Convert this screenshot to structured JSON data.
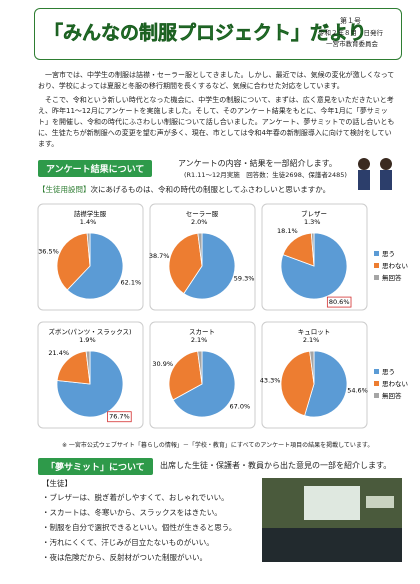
{
  "header": {
    "title": "「みんなの制服プロジェクト」だより",
    "issue": "第１号",
    "date": "令和２年８月　日発行",
    "publisher": "一宮市教育委員会"
  },
  "intro": [
    "一宮市では、中学生の制服は詰襟・セーラー服としてきました。しかし、最近では、気候の変化が激しくなっており、学校によっては夏服と冬服の移行期間を長くするなど、気候に合わせた対応をしています。",
    "そこで、令和という新しい時代となった機会に、中学生の制服について、まずは、広く意見をいただきたいと考え、昨年11～12月にアンケートを実施しました。そして、そのアンケート結果をもとに、今年1月に「夢サミット」を開催し、令和の時代にふさわしい制服について話し合いました。アンケート、夢サミットでの話し合いともに、生徒たちが新制服への変更を望む声が多く、現在、市としては令和4年春の新制服導入に向けて検討をしています。"
  ],
  "survey": {
    "heading": "アンケート結果について",
    "lead": "アンケートの内容・結果を一部紹介します。",
    "note": "(R1.11～12月実施　回答数：生徒2698、保護者2485)",
    "question_tag": "【生徒用設問】",
    "question": "次にあげるものは、令和の時代の制服としてふさわしいと思いますか。",
    "legend": {
      "labels": [
        "思う",
        "思わない",
        "無回答"
      ],
      "colors": [
        "#5b9bd5",
        "#ed7d31",
        "#a5a5a5"
      ]
    },
    "charts": [
      {
        "type": "pie",
        "title": "詰襟学生服",
        "values": [
          62.1,
          36.5,
          1.4
        ],
        "value_labels": [
          "62.1%",
          "36.5%",
          "1.4%"
        ],
        "boxed": false
      },
      {
        "type": "pie",
        "title": "セーラー服",
        "values": [
          59.3,
          38.7,
          2.0
        ],
        "value_labels": [
          "59.3%",
          "38.7%",
          "2.0%"
        ],
        "boxed": false
      },
      {
        "type": "pie",
        "title": "ブレザー",
        "values": [
          80.6,
          18.1,
          1.3
        ],
        "value_labels": [
          "80.6%",
          "18.1%",
          "1.3%"
        ],
        "boxed": true
      },
      {
        "type": "pie",
        "title": "ズボン(パンツ・スラックス)",
        "values": [
          76.7,
          21.4,
          1.9
        ],
        "value_labels": [
          "76.7%",
          "21.4%",
          "1.9%"
        ],
        "boxed": true
      },
      {
        "type": "pie",
        "title": "スカート",
        "values": [
          67.0,
          30.9,
          2.1
        ],
        "value_labels": [
          "67.0%",
          "30.9%",
          "2.1%"
        ],
        "boxed": false
      },
      {
        "type": "pie",
        "title": "キュロット",
        "values": [
          54.6,
          43.3,
          2.1
        ],
        "value_labels": [
          "54.6%",
          "43.3%",
          "2.1%"
        ],
        "boxed": false
      }
    ],
    "footnote": "※ 一宮市公式ウェブサイト「暮らしの情報」－「学校・教育」にすべてのアンケート項目の結果を掲載しています。"
  },
  "summit": {
    "heading": "「夢サミット」について",
    "lead": "出席した生徒・保護者・教員から出た意見の一部を紹介します。",
    "group": "【生徒】",
    "opinions": [
      "ブレザーは、脱ぎ着がしやすくて、おしゃれでいい。",
      "スカートは、冬寒いから、スラックスをはきたい。",
      "制服を自分で選択できるといい。個性が生きると思う。",
      "汚れにくくて、汗じみが目立たないものがいい。",
      "夜は危険だから、反射材がついた制服がいい。"
    ]
  }
}
